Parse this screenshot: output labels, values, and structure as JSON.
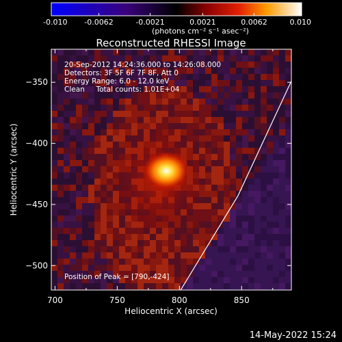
{
  "colorbar": {
    "ticks": [
      "-0.010",
      "-0.0062",
      "-0.0021",
      "0.0021",
      "0.0062",
      "0.010"
    ],
    "tick_values": [
      -0.01,
      -0.0062,
      -0.0021,
      0.0021,
      0.0062,
      0.01
    ],
    "range": [
      -0.01,
      0.01
    ],
    "units": "(photons cm⁻² s⁻¹ asec⁻²)"
  },
  "chart_data": {
    "type": "heatmap",
    "title": "Reconstructed RHESSI Image",
    "xlabel": "Heliocentric X (arcsec)",
    "ylabel": "Heliocentric Y (arcsec)",
    "xlim": [
      697,
      890
    ],
    "ylim": [
      -520,
      -323
    ],
    "x_ticks": [
      700,
      750,
      800,
      850
    ],
    "x_tick_labels": [
      "700",
      "750",
      "800",
      "850"
    ],
    "y_ticks": [
      -350,
      -400,
      -450,
      -500
    ],
    "y_tick_labels": [
      "−350",
      "−400",
      "−450",
      "−500"
    ],
    "peak_position": [
      790,
      -424
    ],
    "limb_line": [
      [
        801,
        -520
      ],
      [
        847,
        -443
      ],
      [
        890,
        -349
      ]
    ],
    "annotations": [
      "20-Sep-2012 14:24:36.000 to 14:26:08.000",
      "Detectors: 3F 5F 6F 7F 8F, Att 0",
      "Energy Range: 6.0 - 12.0 keV",
      "Clean     Total counts: 1.01E+04",
      "Position of Peak = [790,-424]"
    ]
  },
  "footer": {
    "timestamp": "14-May-2022 15:24"
  }
}
